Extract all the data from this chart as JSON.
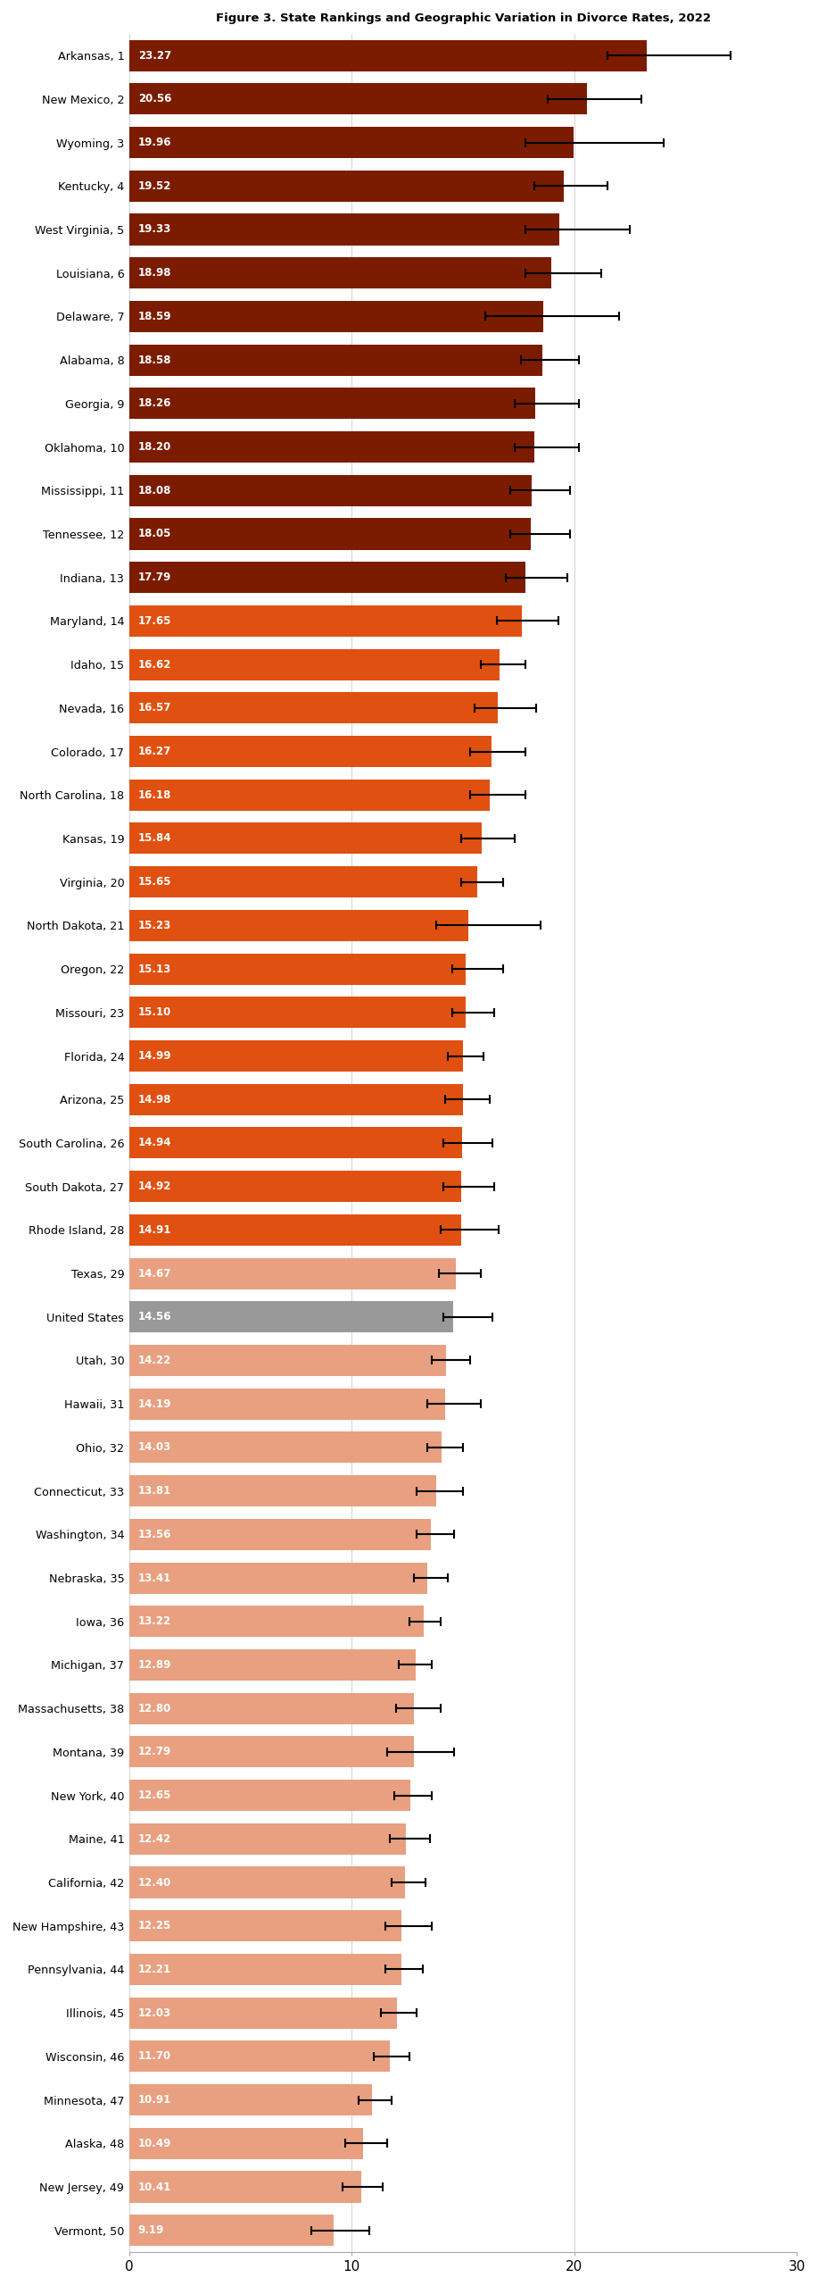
{
  "states": [
    "Arkansas, 1",
    "New Mexico, 2",
    "Wyoming, 3",
    "Kentucky, 4",
    "West Virginia, 5",
    "Louisiana, 6",
    "Delaware, 7",
    "Alabama, 8",
    "Georgia, 9",
    "Oklahoma, 10",
    "Mississippi, 11",
    "Tennessee, 12",
    "Indiana, 13",
    "Maryland, 14",
    "Idaho, 15",
    "Nevada, 16",
    "Colorado, 17",
    "North Carolina, 18",
    "Kansas, 19",
    "Virginia, 20",
    "North Dakota, 21",
    "Oregon, 22",
    "Missouri, 23",
    "Florida, 24",
    "Arizona, 25",
    "South Carolina, 26",
    "South Dakota, 27",
    "Rhode Island, 28",
    "Texas, 29",
    "United States",
    "Utah, 30",
    "Hawaii, 31",
    "Ohio, 32",
    "Connecticut, 33",
    "Washington, 34",
    "Nebraska, 35",
    "Iowa, 36",
    "Michigan, 37",
    "Massachusetts, 38",
    "Montana, 39",
    "New York, 40",
    "Maine, 41",
    "California, 42",
    "New Hampshire, 43",
    "Pennsylvania, 44",
    "Illinois, 45",
    "Wisconsin, 46",
    "Minnesota, 47",
    "Alaska, 48",
    "New Jersey, 49",
    "Vermont, 50"
  ],
  "values": [
    23.27,
    20.56,
    19.96,
    19.52,
    19.33,
    18.98,
    18.59,
    18.58,
    18.26,
    18.2,
    18.08,
    18.05,
    17.79,
    17.65,
    16.62,
    16.57,
    16.27,
    16.18,
    15.84,
    15.65,
    15.23,
    15.13,
    15.1,
    14.99,
    14.98,
    14.94,
    14.92,
    14.91,
    14.67,
    14.56,
    14.22,
    14.19,
    14.03,
    13.81,
    13.56,
    13.41,
    13.22,
    12.89,
    12.8,
    12.79,
    12.65,
    12.42,
    12.4,
    12.25,
    12.21,
    12.03,
    11.7,
    10.91,
    10.49,
    10.41,
    9.19
  ],
  "ci_lower": [
    21.5,
    18.8,
    17.8,
    18.2,
    17.8,
    17.8,
    16.0,
    17.6,
    17.3,
    17.3,
    17.1,
    17.1,
    16.9,
    16.5,
    15.8,
    15.5,
    15.3,
    15.3,
    14.9,
    14.9,
    13.8,
    14.5,
    14.5,
    14.3,
    14.2,
    14.1,
    14.1,
    14.0,
    13.9,
    14.1,
    13.6,
    13.4,
    13.4,
    12.9,
    12.9,
    12.8,
    12.6,
    12.1,
    12.0,
    11.6,
    11.9,
    11.7,
    11.8,
    11.5,
    11.5,
    11.3,
    11.0,
    10.3,
    9.7,
    9.6,
    8.2
  ],
  "ci_upper": [
    27.0,
    23.0,
    24.0,
    21.5,
    22.5,
    21.2,
    22.0,
    20.2,
    20.2,
    20.2,
    19.8,
    19.8,
    19.7,
    19.3,
    17.8,
    18.3,
    17.8,
    17.8,
    17.3,
    16.8,
    18.5,
    16.8,
    16.4,
    15.9,
    16.2,
    16.3,
    16.4,
    16.6,
    15.8,
    16.3,
    15.3,
    15.8,
    15.0,
    15.0,
    14.6,
    14.3,
    14.0,
    13.6,
    14.0,
    14.6,
    13.6,
    13.5,
    13.3,
    13.6,
    13.2,
    12.9,
    12.6,
    11.8,
    11.6,
    11.4,
    10.8
  ],
  "bar_colors": [
    "#7B1C00",
    "#7B1C00",
    "#7B1C00",
    "#7B1C00",
    "#7B1C00",
    "#7B1C00",
    "#7B1C00",
    "#7B1C00",
    "#7B1C00",
    "#7B1C00",
    "#7B1C00",
    "#7B1C00",
    "#7B1C00",
    "#E05010",
    "#E05010",
    "#E05010",
    "#E05010",
    "#E05010",
    "#E05010",
    "#E05010",
    "#E05010",
    "#E05010",
    "#E05010",
    "#E05010",
    "#E05010",
    "#E05010",
    "#E05010",
    "#E05010",
    "#E8A080",
    "#999999",
    "#E8A080",
    "#E8A080",
    "#E8A080",
    "#E8A080",
    "#E8A080",
    "#E8A080",
    "#E8A080",
    "#E8A080",
    "#E8A080",
    "#E8A080",
    "#E8A080",
    "#E8A080",
    "#E8A080",
    "#E8A080",
    "#E8A080",
    "#E8A080",
    "#E8A080",
    "#E8A080",
    "#E8A080",
    "#E8A080",
    "#E8A080"
  ],
  "title": "Figure 3. State Rankings and Geographic Variation in Divorce Rates, 2022",
  "xlabel_ticks": [
    0,
    10,
    20,
    30
  ],
  "background_color": "#ffffff"
}
